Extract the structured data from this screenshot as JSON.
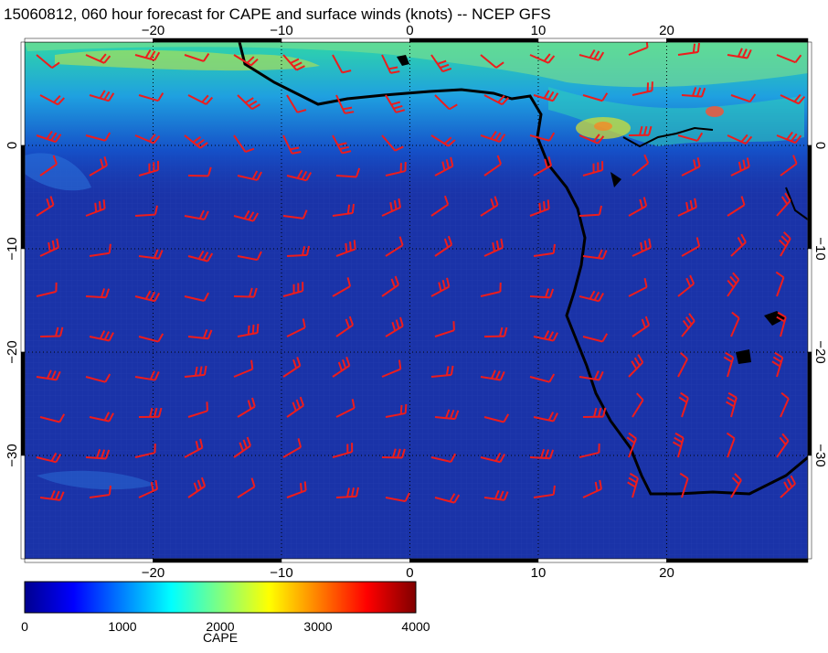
{
  "title": "15060812, 060 hour forecast for CAPE and surface winds (knots) -- NCEP GFS",
  "map": {
    "lon_range": [
      -30,
      31
    ],
    "lat_range": [
      -40,
      10
    ],
    "lon_ticks": [
      -20,
      -10,
      0,
      10,
      20
    ],
    "lat_ticks": [
      0,
      -10,
      -20,
      -30
    ],
    "lon_tick_labels": [
      "−20",
      "−10",
      "0",
      "10",
      "20"
    ],
    "lat_tick_labels": [
      "0",
      "−10",
      "−20",
      "−30"
    ],
    "gridlines": "dotted",
    "wind_barb_color": "#ee1c1c",
    "coastline_color": "#000000"
  },
  "colorbar": {
    "label": "CAPE",
    "range": [
      0,
      4000
    ],
    "ticks": [
      0,
      1000,
      2000,
      3000,
      4000
    ],
    "tick_labels": [
      "0",
      "1000",
      "2000",
      "3000",
      "4000"
    ],
    "colors": [
      "#00008f",
      "#0000ff",
      "#0080ff",
      "#00ffff",
      "#80ff80",
      "#ffff00",
      "#ff8000",
      "#ff0000",
      "#800000"
    ]
  }
}
